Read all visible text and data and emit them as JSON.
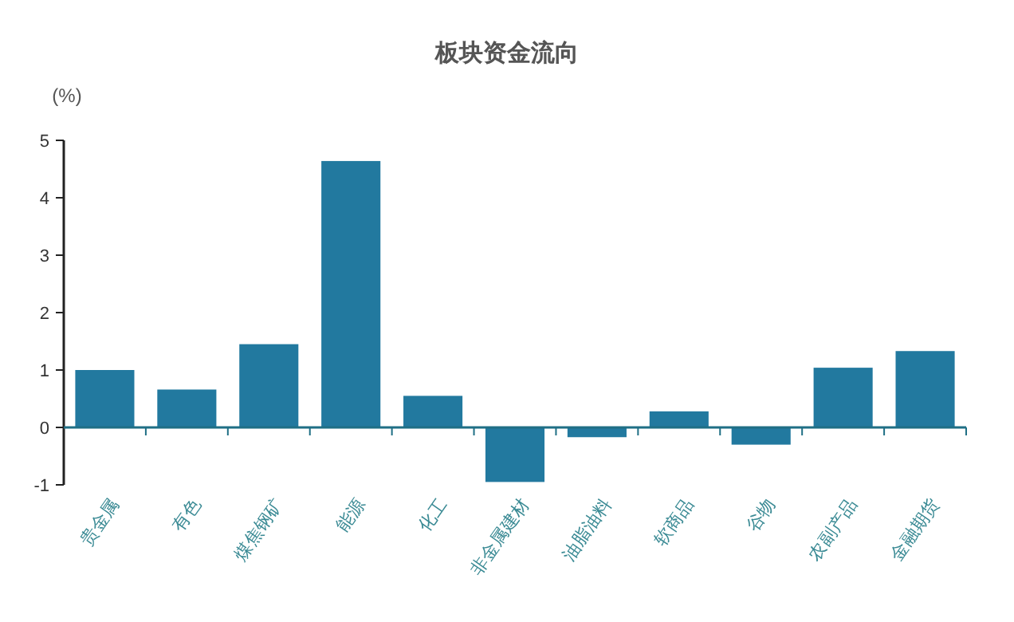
{
  "chart_data": {
    "type": "bar",
    "title": "板块资金流向",
    "ylabel": "(%)",
    "categories": [
      "贵金属",
      "有色",
      "煤焦钢矿",
      "能源",
      "化工",
      "非金属建材",
      "油脂油料",
      "软商品",
      "谷物",
      "农副产品",
      "金融期货"
    ],
    "values": [
      1.0,
      0.66,
      1.45,
      4.64,
      0.55,
      -0.95,
      -0.17,
      0.28,
      -0.3,
      1.04,
      1.33
    ],
    "color": "#22799f",
    "ylim": [
      -1,
      5
    ],
    "yticks": [
      -1,
      0,
      1,
      2,
      3,
      4,
      5
    ],
    "grid": false,
    "ref_lines": [
      {
        "axis": "y",
        "value": 0,
        "color": "#1f6f85"
      }
    ]
  }
}
